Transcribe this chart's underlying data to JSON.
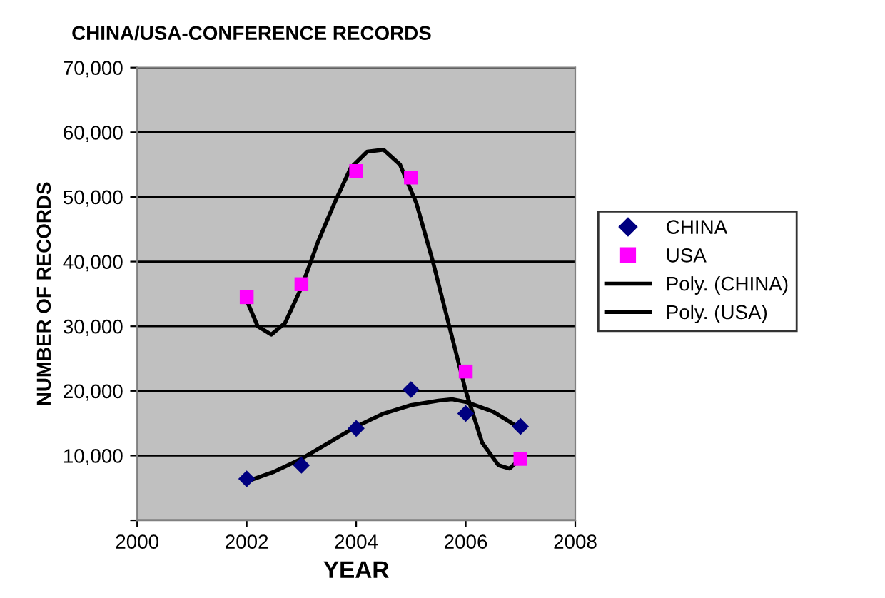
{
  "chart_data": {
    "type": "scatter",
    "title": "CHINA/USA-CONFERENCE RECORDS",
    "xlabel": "YEAR",
    "ylabel": "NUMBER OF RECORDS",
    "x": [
      2002,
      2003,
      2004,
      2005,
      2006,
      2007
    ],
    "series": [
      {
        "name": "CHINA",
        "color": "#000080",
        "marker": "diamond",
        "values": [
          6400,
          8500,
          14200,
          20200,
          16500,
          14500
        ]
      },
      {
        "name": "USA",
        "color": "#ff00ff",
        "marker": "square",
        "values": [
          34500,
          36500,
          54000,
          53000,
          23000,
          9500
        ]
      },
      {
        "name": "Poly. (CHINA)",
        "type": "line",
        "color": "#000000",
        "marker": "none",
        "line_style": "solid",
        "x": [
          2002,
          2002.5,
          2003,
          2003.5,
          2004,
          2004.5,
          2005,
          2005.5,
          2005.75,
          2006,
          2006.5,
          2007
        ],
        "values": [
          6000,
          7500,
          9500,
          12000,
          14500,
          16500,
          17800,
          18500,
          18700,
          18300,
          16800,
          14200
        ]
      },
      {
        "name": "Poly. (USA)",
        "type": "line",
        "color": "#000000",
        "marker": "none",
        "line_style": "solid",
        "x": [
          2002,
          2002.2,
          2002.45,
          2002.7,
          2003,
          2003.3,
          2003.6,
          2003.9,
          2004.2,
          2004.5,
          2004.8,
          2005.1,
          2005.4,
          2005.7,
          2006,
          2006.3,
          2006.6,
          2006.8,
          2007
        ],
        "values": [
          34000,
          30000,
          28700,
          30500,
          36000,
          43000,
          49000,
          54500,
          57000,
          57300,
          55000,
          49000,
          40000,
          30000,
          20000,
          12000,
          8500,
          8000,
          9500
        ]
      }
    ],
    "xlim": [
      2000,
      2008
    ],
    "xticks": [
      2000,
      2002,
      2004,
      2006,
      2008
    ],
    "ylim": [
      0,
      70000
    ],
    "yticks": [
      {
        "value": 0,
        "label": null
      },
      {
        "value": 10000,
        "label": "10,000"
      },
      {
        "value": 20000,
        "label": "20,000"
      },
      {
        "value": 30000,
        "label": "30,000"
      },
      {
        "value": 40000,
        "label": "40,000"
      },
      {
        "value": 50000,
        "label": "50,000"
      },
      {
        "value": 60000,
        "label": "60,000"
      },
      {
        "value": 70000,
        "label": "70,000"
      }
    ],
    "grid": "y",
    "legend": "right"
  }
}
